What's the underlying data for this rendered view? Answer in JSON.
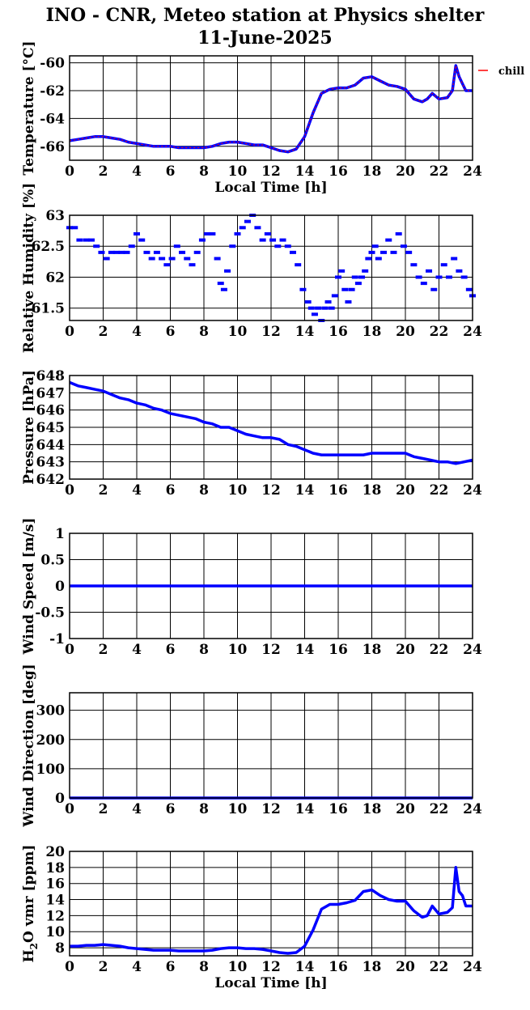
{
  "title_line1": "INO - CNR, Meteo station at Physics shelter",
  "title_line2": "11-June-2025",
  "colors": {
    "series": "#0000ff",
    "highlight": "#ff0000",
    "axis": "#000000"
  },
  "chart_data": [
    {
      "id": "temperature",
      "type": "line",
      "ylabel": "Temperature [°C]",
      "xlabel": "Local Time [h]",
      "xlim": [
        0,
        24
      ],
      "ylim": [
        -67,
        -59.5
      ],
      "xticks": [
        0,
        2,
        4,
        6,
        8,
        10,
        12,
        14,
        16,
        18,
        20,
        22,
        24
      ],
      "yticks": [
        -60,
        -62,
        -64,
        -66
      ],
      "legend": [
        "chill"
      ],
      "series": [
        {
          "name": "chill",
          "x": [
            0,
            0.5,
            1,
            1.5,
            2,
            2.5,
            3,
            3.5,
            4,
            4.5,
            5,
            5.5,
            6,
            6.5,
            7,
            7.5,
            8,
            8.5,
            9,
            9.5,
            10,
            10.5,
            11,
            11.5,
            12,
            12.5,
            13,
            13.5,
            14,
            14.5,
            15,
            15.5,
            16,
            16.5,
            17,
            17.5,
            18,
            18.5,
            19,
            19.5,
            20,
            20.5,
            21,
            21.3,
            21.6,
            22,
            22.5,
            22.8,
            23,
            23.2,
            23.4,
            23.6,
            24
          ],
          "y": [
            -65.6,
            -65.5,
            -65.4,
            -65.3,
            -65.3,
            -65.4,
            -65.5,
            -65.7,
            -65.8,
            -65.9,
            -66.0,
            -66.0,
            -66.0,
            -66.1,
            -66.1,
            -66.1,
            -66.1,
            -66.0,
            -65.8,
            -65.7,
            -65.7,
            -65.8,
            -65.9,
            -65.9,
            -66.1,
            -66.3,
            -66.4,
            -66.2,
            -65.3,
            -63.6,
            -62.2,
            -61.9,
            -61.8,
            -61.8,
            -61.6,
            -61.1,
            -61.0,
            -61.3,
            -61.6,
            -61.7,
            -61.9,
            -62.6,
            -62.8,
            -62.6,
            -62.2,
            -62.6,
            -62.5,
            -62.0,
            -60.2,
            -61.0,
            -61.5,
            -62.0,
            -62.0
          ]
        }
      ]
    },
    {
      "id": "humidity",
      "type": "scatter",
      "ylabel": "Relative Humidity [%]",
      "xlim": [
        0,
        24
      ],
      "ylim": [
        61.3,
        63.0
      ],
      "xticks": [
        0,
        2,
        4,
        6,
        8,
        10,
        12,
        14,
        16,
        18,
        20,
        22,
        24
      ],
      "yticks": [
        61.5,
        62,
        62.5,
        63
      ],
      "series": [
        {
          "x": [
            0,
            0.3,
            0.6,
            1,
            1.3,
            1.6,
            1.9,
            2.2,
            2.5,
            2.8,
            3.1,
            3.4,
            3.7,
            4,
            4.3,
            4.6,
            4.9,
            5.2,
            5.5,
            5.8,
            6.1,
            6.4,
            6.7,
            7,
            7.3,
            7.6,
            7.9,
            8.2,
            8.5,
            8.8,
            9,
            9.2,
            9.4,
            9.7,
            10,
            10.3,
            10.6,
            10.9,
            11.2,
            11.5,
            11.8,
            12.1,
            12.4,
            12.7,
            13,
            13.3,
            13.6,
            13.9,
            14.2,
            14.4,
            14.6,
            14.8,
            15,
            15.2,
            15.4,
            15.6,
            15.8,
            16,
            16.2,
            16.4,
            16.6,
            16.8,
            17,
            17.2,
            17.4,
            17.6,
            17.8,
            18,
            18.2,
            18.4,
            18.7,
            19,
            19.3,
            19.6,
            19.9,
            20.2,
            20.5,
            20.8,
            21.1,
            21.4,
            21.7,
            22,
            22.3,
            22.6,
            22.9,
            23.2,
            23.5,
            23.8,
            24
          ],
          "y": [
            62.8,
            62.8,
            62.6,
            62.6,
            62.6,
            62.5,
            62.4,
            62.3,
            62.4,
            62.4,
            62.4,
            62.4,
            62.5,
            62.7,
            62.6,
            62.4,
            62.3,
            62.4,
            62.3,
            62.2,
            62.3,
            62.5,
            62.4,
            62.3,
            62.2,
            62.4,
            62.6,
            62.7,
            62.7,
            62.3,
            61.9,
            61.8,
            62.1,
            62.5,
            62.7,
            62.8,
            62.9,
            63.0,
            62.8,
            62.6,
            62.7,
            62.6,
            62.5,
            62.6,
            62.5,
            62.4,
            62.2,
            61.8,
            61.6,
            61.5,
            61.4,
            61.5,
            61.3,
            61.5,
            61.6,
            61.5,
            61.7,
            62.0,
            62.1,
            61.8,
            61.6,
            61.8,
            62.0,
            61.9,
            62.0,
            62.1,
            62.3,
            62.4,
            62.5,
            62.3,
            62.4,
            62.6,
            62.4,
            62.7,
            62.5,
            62.4,
            62.2,
            62.0,
            61.9,
            62.1,
            61.8,
            62.0,
            62.2,
            62.0,
            62.3,
            62.1,
            62.0,
            61.8,
            61.7
          ]
        }
      ]
    },
    {
      "id": "pressure",
      "type": "line",
      "ylabel": "Pressure [hPa]",
      "xlim": [
        0,
        24
      ],
      "ylim": [
        642,
        648
      ],
      "xticks": [
        0,
        2,
        4,
        6,
        8,
        10,
        12,
        14,
        16,
        18,
        20,
        22,
        24
      ],
      "yticks": [
        642,
        643,
        644,
        645,
        646,
        647,
        648
      ],
      "series": [
        {
          "x": [
            0,
            0.5,
            1,
            1.5,
            2,
            2.5,
            3,
            3.5,
            4,
            4.5,
            5,
            5.5,
            6,
            6.5,
            7,
            7.5,
            8,
            8.5,
            9,
            9.5,
            10,
            10.5,
            11,
            11.5,
            12,
            12.5,
            13,
            13.5,
            14,
            14.5,
            15,
            15.5,
            16,
            16.5,
            17,
            17.5,
            18,
            18.5,
            19,
            19.5,
            20,
            20.5,
            21,
            21.5,
            22,
            22.5,
            23,
            23.5,
            24
          ],
          "y": [
            647.6,
            647.4,
            647.3,
            647.2,
            647.1,
            646.9,
            646.7,
            646.6,
            646.4,
            646.3,
            646.1,
            646.0,
            645.8,
            645.7,
            645.6,
            645.5,
            645.3,
            645.2,
            645.0,
            645.0,
            644.8,
            644.6,
            644.5,
            644.4,
            644.4,
            644.3,
            644.0,
            643.9,
            643.7,
            643.5,
            643.4,
            643.4,
            643.4,
            643.4,
            643.4,
            643.4,
            643.5,
            643.5,
            643.5,
            643.5,
            643.5,
            643.3,
            643.2,
            643.1,
            643.0,
            643.0,
            642.9,
            643.0,
            643.1
          ]
        }
      ]
    },
    {
      "id": "wind_speed",
      "type": "line",
      "ylabel": "Wind Speed [m/s]",
      "xlim": [
        0,
        24
      ],
      "ylim": [
        -1,
        1
      ],
      "xticks": [
        0,
        2,
        4,
        6,
        8,
        10,
        12,
        14,
        16,
        18,
        20,
        22,
        24
      ],
      "yticks": [
        -1,
        -0.5,
        0,
        0.5,
        1
      ],
      "series": [
        {
          "x": [
            0,
            24
          ],
          "y": [
            0,
            0
          ]
        }
      ]
    },
    {
      "id": "wind_direction",
      "type": "line",
      "ylabel": "Wind Direction [deg]",
      "xlim": [
        0,
        24
      ],
      "ylim": [
        0,
        360
      ],
      "xticks": [
        0,
        2,
        4,
        6,
        8,
        10,
        12,
        14,
        16,
        18,
        20,
        22,
        24
      ],
      "yticks": [
        0,
        100,
        200,
        300
      ],
      "series": [
        {
          "x": [
            0,
            24
          ],
          "y": [
            0,
            0
          ]
        }
      ]
    },
    {
      "id": "h2o",
      "type": "line",
      "ylabel": "H2O vmr [ppm]",
      "xlabel": "Local Time [h]",
      "xlim": [
        0,
        24
      ],
      "ylim": [
        7,
        20
      ],
      "xticks": [
        0,
        2,
        4,
        6,
        8,
        10,
        12,
        14,
        16,
        18,
        20,
        22,
        24
      ],
      "yticks": [
        8,
        10,
        12,
        14,
        16,
        18,
        20
      ],
      "series": [
        {
          "x": [
            0,
            0.5,
            1,
            1.5,
            2,
            2.5,
            3,
            3.5,
            4,
            4.5,
            5,
            5.5,
            6,
            6.5,
            7,
            7.5,
            8,
            8.5,
            9,
            9.5,
            10,
            10.5,
            11,
            11.5,
            12,
            12.5,
            13,
            13.5,
            14,
            14.5,
            15,
            15.5,
            16,
            16.5,
            17,
            17.5,
            18,
            18.5,
            19,
            19.5,
            20,
            20.5,
            21,
            21.3,
            21.6,
            22,
            22.5,
            22.8,
            23,
            23.2,
            23.4,
            23.6,
            24
          ],
          "y": [
            8.2,
            8.2,
            8.3,
            8.3,
            8.4,
            8.3,
            8.2,
            8.0,
            7.9,
            7.8,
            7.7,
            7.7,
            7.7,
            7.6,
            7.6,
            7.6,
            7.6,
            7.7,
            7.9,
            8.0,
            8.0,
            7.9,
            7.9,
            7.8,
            7.6,
            7.4,
            7.3,
            7.4,
            8.2,
            10.2,
            12.8,
            13.4,
            13.4,
            13.6,
            13.9,
            15.0,
            15.2,
            14.5,
            14.0,
            13.8,
            13.8,
            12.6,
            11.8,
            12.0,
            13.2,
            12.2,
            12.4,
            13.0,
            18.0,
            15.0,
            14.5,
            13.2,
            13.2
          ]
        }
      ]
    }
  ]
}
